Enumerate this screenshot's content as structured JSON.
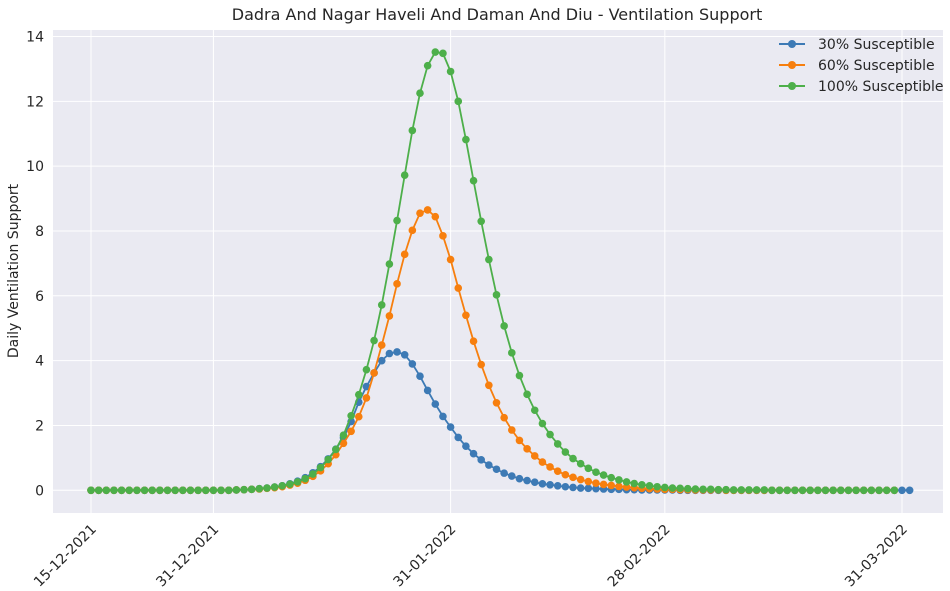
{
  "chart_data": {
    "type": "line",
    "title": "Dadra And Nagar Haveli And Daman And Diu - Ventilation Support",
    "xlabel": "",
    "ylabel": "Daily Ventilation Support",
    "x_start": "15-12-2021",
    "x_end": "31-03-2022",
    "x_ticks": [
      "15-12-2021",
      "31-12-2021",
      "31-01-2022",
      "28-02-2022",
      "31-03-2022"
    ],
    "ylim": [
      -0.7,
      14.2
    ],
    "y_ticks": [
      0,
      2,
      4,
      6,
      8,
      10,
      12,
      14
    ],
    "grid": true,
    "legend_position": "top-right",
    "series": [
      {
        "name": "30% Susceptible",
        "color": "#3d7ab5",
        "values": [
          0,
          0,
          0,
          0,
          0,
          0,
          0,
          0,
          0,
          0,
          0,
          0,
          0,
          0,
          0,
          0,
          0,
          0,
          0,
          0.01,
          0.02,
          0.03,
          0.05,
          0.07,
          0.1,
          0.14,
          0.2,
          0.28,
          0.39,
          0.54,
          0.73,
          0.97,
          1.27,
          1.62,
          2.12,
          2.72,
          3.2,
          3.62,
          4.0,
          4.22,
          4.27,
          4.18,
          3.9,
          3.52,
          3.08,
          2.66,
          2.28,
          1.95,
          1.63,
          1.36,
          1.13,
          0.94,
          0.78,
          0.65,
          0.53,
          0.44,
          0.36,
          0.3,
          0.25,
          0.2,
          0.17,
          0.14,
          0.11,
          0.09,
          0.07,
          0.06,
          0.05,
          0.04,
          0.03,
          0.03,
          0.02,
          0.02,
          0.01,
          0.01,
          0.01,
          0.01,
          0.01,
          0,
          0,
          0,
          0,
          0,
          0,
          0,
          0,
          0,
          0,
          0,
          0,
          0,
          0,
          0,
          0,
          0,
          0,
          0,
          0,
          0,
          0,
          0,
          0,
          0,
          0,
          0,
          0,
          0,
          0,
          0
        ]
      },
      {
        "name": "60% Susceptible",
        "color": "#f77f0e",
        "values": [
          0,
          0,
          0,
          0,
          0,
          0,
          0,
          0,
          0,
          0,
          0,
          0,
          0,
          0,
          0,
          0,
          0,
          0,
          0,
          0.01,
          0.02,
          0.03,
          0.04,
          0.06,
          0.08,
          0.11,
          0.16,
          0.22,
          0.31,
          0.43,
          0.6,
          0.82,
          1.1,
          1.45,
          1.82,
          2.27,
          2.85,
          3.62,
          4.48,
          5.38,
          6.37,
          7.28,
          8.02,
          8.55,
          8.65,
          8.44,
          7.85,
          7.12,
          6.24,
          5.4,
          4.6,
          3.88,
          3.24,
          2.7,
          2.24,
          1.86,
          1.54,
          1.28,
          1.06,
          0.87,
          0.72,
          0.59,
          0.48,
          0.4,
          0.33,
          0.27,
          0.22,
          0.18,
          0.15,
          0.12,
          0.1,
          0.08,
          0.06,
          0.05,
          0.04,
          0.03,
          0.03,
          0.02,
          0.02,
          0.01,
          0.01,
          0.01,
          0.01,
          0,
          0,
          0,
          0,
          0,
          0,
          0,
          0,
          0,
          0,
          0,
          0,
          0,
          0,
          0,
          0,
          0,
          0,
          0,
          0,
          0,
          0,
          0
        ]
      },
      {
        "name": "100% Susceptible",
        "color": "#4daf4a",
        "values": [
          0,
          0,
          0,
          0,
          0,
          0,
          0,
          0,
          0,
          0,
          0,
          0,
          0,
          0,
          0,
          0,
          0,
          0,
          0,
          0.01,
          0.02,
          0.03,
          0.05,
          0.07,
          0.1,
          0.14,
          0.19,
          0.26,
          0.36,
          0.5,
          0.7,
          0.95,
          1.26,
          1.7,
          2.3,
          2.95,
          3.72,
          4.62,
          5.72,
          6.98,
          8.32,
          9.72,
          11.1,
          12.25,
          13.1,
          13.52,
          13.48,
          12.92,
          12.0,
          10.82,
          9.55,
          8.3,
          7.12,
          6.03,
          5.07,
          4.24,
          3.54,
          2.96,
          2.47,
          2.06,
          1.72,
          1.43,
          1.18,
          0.98,
          0.82,
          0.68,
          0.56,
          0.47,
          0.39,
          0.32,
          0.26,
          0.21,
          0.17,
          0.14,
          0.11,
          0.09,
          0.07,
          0.06,
          0.05,
          0.04,
          0.03,
          0.03,
          0.02,
          0.02,
          0.01,
          0.01,
          0.01,
          0.01,
          0.01,
          0,
          0,
          0,
          0,
          0,
          0,
          0,
          0,
          0,
          0,
          0,
          0,
          0,
          0,
          0,
          0,
          0
        ]
      }
    ]
  }
}
